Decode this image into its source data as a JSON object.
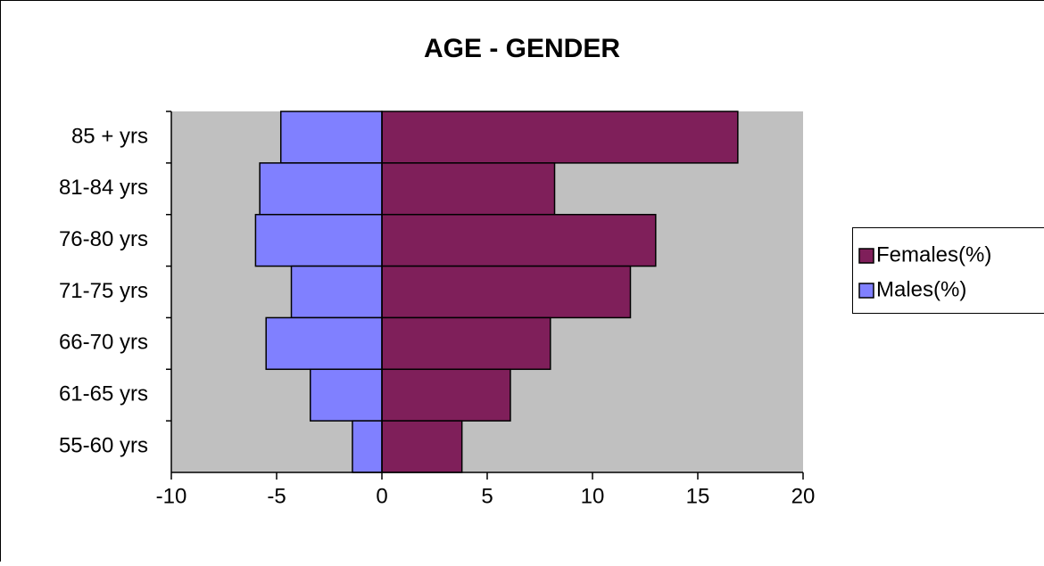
{
  "chart_data": {
    "type": "bar",
    "orientation": "horizontal",
    "title": "AGE - GENDER",
    "categories": [
      "85 + yrs",
      "81-84 yrs",
      "76-80 yrs",
      "71-75 yrs",
      "66-70 yrs",
      "61-65 yrs",
      "55-60 yrs"
    ],
    "series": [
      {
        "name": "Females(%)",
        "color": "#7f1f5a",
        "values": [
          16.9,
          8.2,
          13.0,
          11.8,
          8.0,
          6.1,
          3.8
        ]
      },
      {
        "name": "Males(%)",
        "color": "#8080ff",
        "values": [
          -4.8,
          -5.8,
          -6.0,
          -4.3,
          -5.5,
          -3.4,
          -1.4
        ]
      }
    ],
    "xlim": [
      -10,
      20
    ],
    "xticks": [
      -10,
      -5,
      0,
      5,
      10,
      15,
      20
    ],
    "grid": false,
    "legend": "right",
    "plot_background": "#c0c0c0"
  }
}
